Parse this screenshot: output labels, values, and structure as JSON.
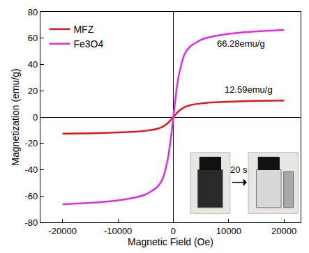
{
  "chart_data": {
    "type": "line",
    "xlabel": "Magnetic Field (Oe)",
    "ylabel": "Magnetization (emu/g)",
    "x": [
      -20000,
      -15000,
      -10000,
      -7000,
      -5000,
      -3000,
      -2000,
      -1000,
      -500,
      0,
      500,
      1000,
      2000,
      3000,
      5000,
      7000,
      10000,
      15000,
      20000
    ],
    "series": [
      {
        "name": "MFZ",
        "color": "#e8141b",
        "values": [
          -12.59,
          -12.3,
          -11.7,
          -11.1,
          -10.4,
          -9.0,
          -7.5,
          -4.6,
          -2.4,
          0,
          2.4,
          4.6,
          7.5,
          9.0,
          10.4,
          11.1,
          11.7,
          12.3,
          12.59
        ]
      },
      {
        "name": "Fe3O4",
        "color": "#e22ae6",
        "values": [
          -66.28,
          -65.2,
          -63.3,
          -61.2,
          -58.8,
          -53.5,
          -47.5,
          -32,
          -18,
          0,
          18,
          32,
          47.5,
          53.5,
          58.8,
          61.2,
          63.3,
          65.2,
          66.28
        ]
      }
    ],
    "xlim": [
      -24000,
      23000
    ],
    "xticks": [
      -20000,
      -10000,
      0,
      10000,
      20000
    ],
    "ylim": [
      -80,
      80
    ],
    "yticks": [
      -80,
      -60,
      -40,
      -20,
      0,
      20,
      40,
      60,
      80
    ],
    "annotations": [
      "66.28emu/g",
      "12.59emu/g",
      "20 s"
    ],
    "legend": "upper left",
    "grid": false
  }
}
